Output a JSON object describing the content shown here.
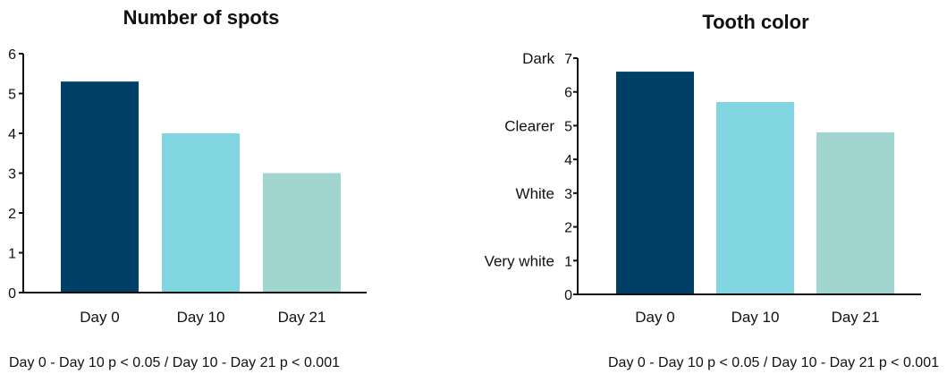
{
  "chart_data": [
    {
      "type": "bar",
      "title": "Number of spots",
      "categories": [
        "Day 0",
        "Day 10",
        "Day 21"
      ],
      "values": [
        5.3,
        4.0,
        3.0
      ],
      "ylim": [
        0,
        6
      ],
      "yticks": [
        "0",
        "1",
        "2",
        "3",
        "4",
        "5",
        "6"
      ],
      "colors": [
        "#003f66",
        "#80d5e0",
        "#a0d6cf"
      ],
      "footnote": "Day 0 - Day 10 p < 0.05 / Day 10 - Day 21 p < 0.001",
      "grid": false
    },
    {
      "type": "bar",
      "title": "Tooth color",
      "categories": [
        "Day 0",
        "Day 10",
        "Day 21"
      ],
      "values": [
        6.6,
        5.7,
        4.8
      ],
      "ylim": [
        0,
        7
      ],
      "yticks": [
        "0",
        "1",
        "2",
        "3",
        "4",
        "5",
        "6",
        "7"
      ],
      "ycategory_labels": [
        {
          "value": 7,
          "label": "Dark"
        },
        {
          "value": 5,
          "label": "Clearer"
        },
        {
          "value": 3,
          "label": "White"
        },
        {
          "value": 1,
          "label": "Very white"
        }
      ],
      "colors": [
        "#003f66",
        "#80d5e0",
        "#a0d6cf"
      ],
      "footnote": "Day 0 - Day 10 p < 0.05 / Day 10 - Day 21 p < 0.001",
      "grid": false
    }
  ]
}
